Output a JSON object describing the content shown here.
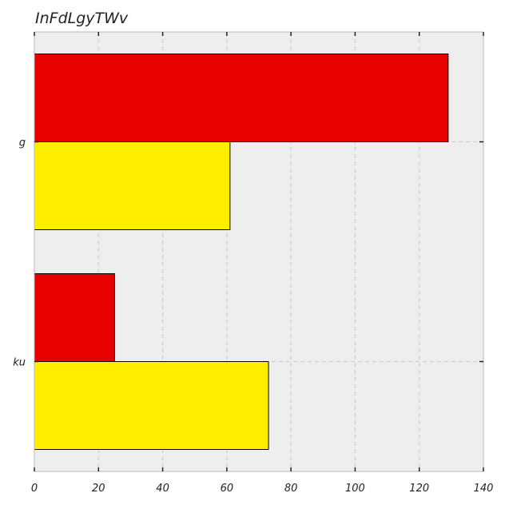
{
  "chart_data": {
    "type": "bar",
    "orientation": "horizontal",
    "title": "InFdLgyTWv",
    "xlabel": "",
    "ylabel": "",
    "categories": [
      "ku",
      "g"
    ],
    "series": [
      {
        "color": "#e60000",
        "values": [
          25,
          129
        ]
      },
      {
        "color": "#ffee00",
        "values": [
          73,
          61
        ]
      }
    ],
    "xlim": [
      0,
      140
    ],
    "xticks": [
      0,
      20,
      40,
      60,
      80,
      100,
      120,
      140
    ],
    "grid": true,
    "background": "#eeeeee"
  }
}
